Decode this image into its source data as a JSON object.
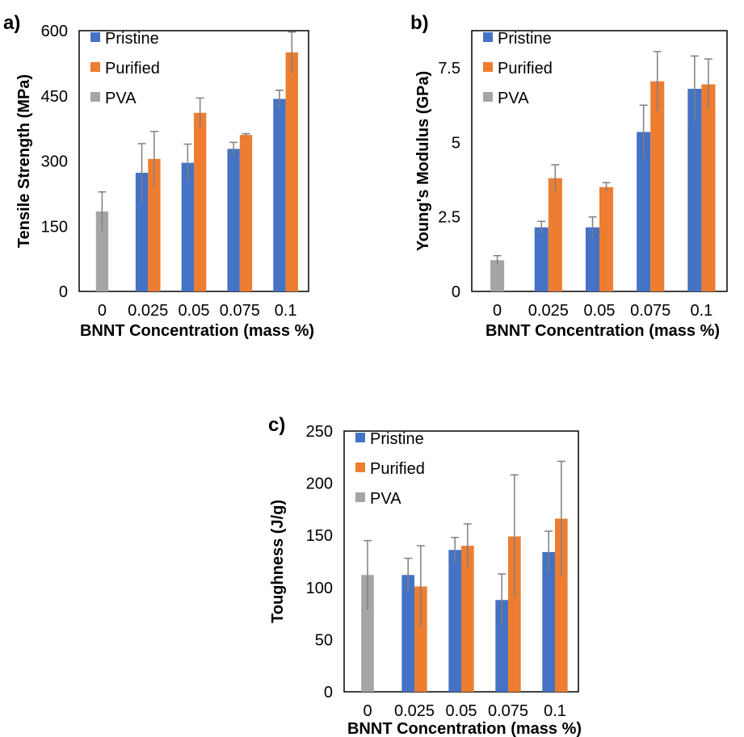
{
  "chart_data": [
    {
      "type": "bar",
      "panel_label": "a)",
      "xlabel": "BNNT  Concentration (mass %)",
      "ylabel": "Tensile Strength (MPa)",
      "ylim": [
        0,
        600
      ],
      "yticks": [
        "0",
        "150",
        "300",
        "450",
        "600"
      ],
      "categories": [
        "0",
        "0.025",
        "0.05",
        "0.075",
        "0.1"
      ],
      "legend_position": "top-left",
      "grid": false,
      "series": [
        {
          "name": "Pristine",
          "color": "#4472C4",
          "values": [
            null,
            273,
            296,
            328,
            443
          ],
          "errors": [
            null,
            67,
            43,
            15,
            20
          ]
        },
        {
          "name": "Purified",
          "color": "#ED7D31",
          "values": [
            null,
            305,
            411,
            360,
            550
          ],
          "errors": [
            null,
            63,
            34,
            3,
            47
          ]
        },
        {
          "name": "PVA",
          "color": "#A5A5A5",
          "values": [
            184,
            null,
            null,
            null,
            null
          ],
          "errors": [
            45,
            null,
            null,
            null,
            null
          ]
        }
      ]
    },
    {
      "type": "bar",
      "panel_label": "b)",
      "xlabel": "BNNT  Concentration (mass %)",
      "ylabel": "Young's Modulus (GPa)",
      "ylim": [
        0,
        8.75
      ],
      "yticks": [
        "0",
        "2.5",
        "5",
        "7.5"
      ],
      "categories": [
        "0",
        "0.025",
        "0.05",
        "0.075",
        "0.1"
      ],
      "legend_position": "top-left",
      "grid": false,
      "series": [
        {
          "name": "Pristine",
          "color": "#4472C4",
          "values": [
            null,
            2.15,
            2.15,
            5.35,
            6.8
          ],
          "errors": [
            null,
            0.2,
            0.35,
            0.9,
            1.1
          ]
        },
        {
          "name": "Purified",
          "color": "#ED7D31",
          "values": [
            null,
            3.8,
            3.5,
            7.05,
            6.95
          ],
          "errors": [
            null,
            0.45,
            0.15,
            1.0,
            0.85
          ]
        },
        {
          "name": "PVA",
          "color": "#A5A5A5",
          "values": [
            1.05,
            null,
            null,
            null,
            null
          ],
          "errors": [
            0.15,
            null,
            null,
            null,
            null
          ]
        }
      ]
    },
    {
      "type": "bar",
      "panel_label": "c)",
      "xlabel": "BNNT  Concentration (mass %)",
      "ylabel": "Toughness (J/g)",
      "ylim": [
        0,
        250
      ],
      "yticks": [
        "0",
        "50",
        "100",
        "150",
        "200",
        "250"
      ],
      "categories": [
        "0",
        "0.025",
        "0.05",
        "0.075",
        "0.1"
      ],
      "legend_position": "top-left",
      "grid": false,
      "series": [
        {
          "name": "Pristine",
          "color": "#4472C4",
          "values": [
            null,
            112,
            136,
            88,
            134
          ],
          "errors": [
            null,
            16,
            12,
            25,
            20
          ]
        },
        {
          "name": "Purified",
          "color": "#ED7D31",
          "values": [
            null,
            101,
            140,
            149,
            166
          ],
          "errors": [
            null,
            39,
            21,
            59,
            55
          ]
        },
        {
          "name": "PVA",
          "color": "#A5A5A5",
          "values": [
            112,
            null,
            null,
            null,
            null
          ],
          "errors": [
            33,
            null,
            null,
            null,
            null
          ]
        }
      ]
    }
  ]
}
